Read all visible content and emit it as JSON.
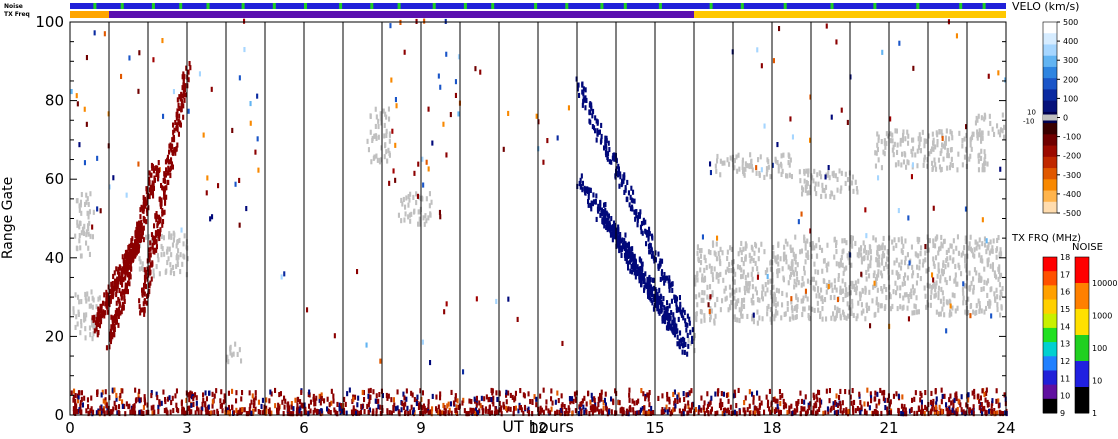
{
  "chart_data": {
    "type": "heatmap",
    "xlabel": "UT hours",
    "ylabel": "Range Gate",
    "xlim": [
      0,
      24
    ],
    "ylim": [
      0,
      100
    ],
    "x_ticks": [
      0,
      3,
      6,
      9,
      12,
      15,
      18,
      21,
      24
    ],
    "y_ticks": [
      0,
      20,
      40,
      60,
      80,
      100
    ],
    "scan_boundary_hours": [
      1,
      2,
      3,
      4,
      5,
      6,
      7,
      8,
      9,
      10,
      11,
      12,
      13,
      14,
      15,
      16,
      17,
      18,
      19,
      20,
      21,
      22,
      23
    ],
    "noise_bar_label": "Noise",
    "txfreq_bar_label": "TX Freq",
    "noise_bar": {
      "base_color": "#2020d8",
      "green_marks_hours": [
        0.6,
        1.3,
        2.1,
        2.8,
        3.5,
        4.4,
        5.2,
        6.0,
        6.9,
        7.7,
        8.4,
        9.3,
        10.1,
        10.8,
        11.9,
        12.7,
        13.6,
        14.2,
        15.1,
        16.4,
        17.2,
        18.3,
        19.5,
        20.6,
        21.7,
        22.8,
        23.4
      ]
    },
    "txfreq_bar": {
      "segments": [
        {
          "from": 0,
          "to": 1,
          "color": "#ffa500"
        },
        {
          "from": 1,
          "to": 16,
          "color": "#5a10b0"
        },
        {
          "from": 16,
          "to": 24,
          "color": "#ffc800"
        }
      ]
    },
    "velocity_scale": {
      "title": "VELO (km/s)",
      "ticks": [
        500,
        400,
        300,
        200,
        100,
        0,
        -100,
        -200,
        -300,
        -400,
        -500
      ],
      "ground_scatter_labels": [
        "10",
        "-10"
      ],
      "colors": [
        "#ffffff",
        "#d6ecff",
        "#a6d6ff",
        "#62b4f2",
        "#2e84e0",
        "#1a55c8",
        "#0a2aa0",
        "#06127a",
        "#000050",
        "#3a0000",
        "#700000",
        "#9c0a00",
        "#c02800",
        "#e05800",
        "#f88800",
        "#ffb44c",
        "#ffdcae"
      ]
    },
    "txfreq_scale": {
      "title": "TX FRQ (MHz)",
      "ticks": [
        "18",
        "17",
        "16",
        "15",
        "14",
        "13",
        "12",
        "11",
        "10",
        "9"
      ],
      "colors": [
        "#ff0000",
        "#ff5000",
        "#ffa000",
        "#ffd000",
        "#c8f000",
        "#20e020",
        "#00d0d0",
        "#2080ff",
        "#2020d8",
        "#6010a0",
        "#000000"
      ]
    },
    "noise_scale": {
      "title": "NOISE",
      "ticks": [
        "10000",
        "1000",
        "100",
        "10",
        "1"
      ],
      "colors": [
        "#ff0000",
        "#ff8000",
        "#ffe000",
        "#20d020",
        "#2020e0",
        "#000000"
      ]
    },
    "ground_scatter_color": "#c0c0c0",
    "ground_scatter_regions": [
      {
        "x": [
          0.05,
          0.8
        ],
        "y": [
          19,
          31
        ]
      },
      {
        "x": [
          0.1,
          0.6
        ],
        "y": [
          40,
          56
        ]
      },
      {
        "x": [
          1.7,
          3.0
        ],
        "y": [
          35,
          46
        ]
      },
      {
        "x": [
          4.0,
          4.4
        ],
        "y": [
          13,
          18
        ]
      },
      {
        "x": [
          7.6,
          8.2
        ],
        "y": [
          64,
          78
        ]
      },
      {
        "x": [
          8.4,
          9.3
        ],
        "y": [
          48,
          56
        ]
      },
      {
        "x": [
          15.8,
          16.0
        ],
        "y": [
          16,
          20
        ]
      },
      {
        "x": [
          16.0,
          18.2
        ],
        "y": [
          23,
          44
        ]
      },
      {
        "x": [
          18.2,
          20.4
        ],
        "y": [
          24,
          45
        ]
      },
      {
        "x": [
          20.4,
          23.9
        ],
        "y": [
          25,
          45
        ]
      },
      {
        "x": [
          16.5,
          18.5
        ],
        "y": [
          60,
          66
        ]
      },
      {
        "x": [
          20.6,
          23.5
        ],
        "y": [
          62,
          72
        ]
      },
      {
        "x": [
          23.2,
          24.0
        ],
        "y": [
          70,
          76
        ]
      },
      {
        "x": [
          18.6,
          20.2
        ],
        "y": [
          55,
          62
        ]
      }
    ],
    "velocity_features": [
      {
        "name": "dawn-arc-1",
        "from": [
          1.0,
          18
        ],
        "to": [
          2.2,
          64
        ],
        "color": "#8b0000"
      },
      {
        "name": "dawn-arc-2",
        "from": [
          1.8,
          26
        ],
        "to": [
          3.0,
          88
        ],
        "color": "#8b0000"
      },
      {
        "name": "dawn-arc-3",
        "from": [
          0.6,
          22
        ],
        "to": [
          1.8,
          46
        ],
        "color": "#8b0000"
      },
      {
        "name": "afternoon-blue-1",
        "from": [
          13.0,
          60
        ],
        "to": [
          15.8,
          16
        ],
        "color": "#00087a"
      },
      {
        "name": "afternoon-blue-2",
        "from": [
          13.0,
          84
        ],
        "to": [
          15.9,
          20
        ],
        "color": "#00087a"
      },
      {
        "name": "afternoon-blue-3",
        "from": [
          13.6,
          52
        ],
        "to": [
          15.5,
          22
        ],
        "color": "#00087a"
      }
    ],
    "near_range_band": {
      "y": [
        0,
        6
      ],
      "from": 0,
      "to": 24
    },
    "scattered_echo_regions": [
      {
        "x": [
          0,
          5
        ],
        "y": [
          45,
          100
        ],
        "density": 0.05
      },
      {
        "x": [
          8,
          10
        ],
        "y": [
          50,
          100
        ],
        "density": 0.09
      },
      {
        "x": [
          10,
          13
        ],
        "y": [
          60,
          90
        ],
        "density": 0.03
      },
      {
        "x": [
          16,
          24
        ],
        "y": [
          20,
          100
        ],
        "density": 0.03
      },
      {
        "x": [
          5,
          13
        ],
        "y": [
          5,
          40
        ],
        "density": 0.015
      }
    ]
  }
}
